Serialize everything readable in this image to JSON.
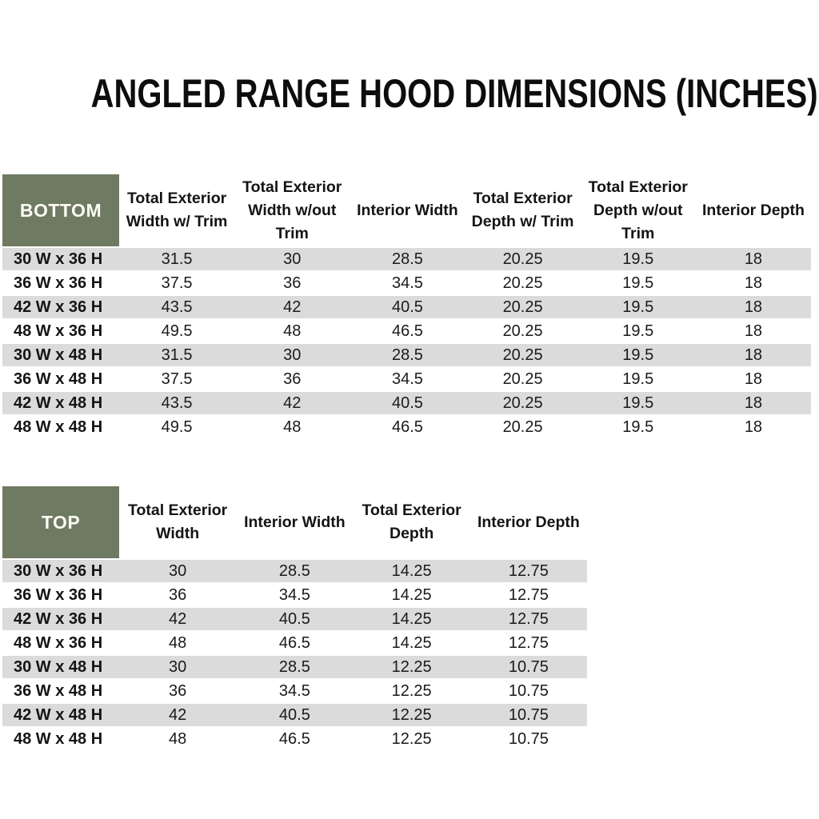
{
  "title": "ANGLED RANGE HOOD DIMENSIONS (INCHES)",
  "colors": {
    "header_green": "#6f7a62",
    "stripe_gray": "#dbdbdb",
    "header_text": "#fbfbf4",
    "body_text": "#1a1a1a",
    "background": "#ffffff"
  },
  "bottom_table": {
    "label": "BOTTOM",
    "columns": [
      "Total Exterior Width w/ Trim",
      "Total Exterior Width w/out Trim",
      "Interior Width",
      "Total Exterior Depth w/ Trim",
      "Total Exterior Depth w/out Trim",
      "Interior Depth"
    ],
    "rows": [
      {
        "size": "30 W x 36 H",
        "values": [
          "31.5",
          "30",
          "28.5",
          "20.25",
          "19.5",
          "18"
        ]
      },
      {
        "size": "36 W x 36 H",
        "values": [
          "37.5",
          "36",
          "34.5",
          "20.25",
          "19.5",
          "18"
        ]
      },
      {
        "size": "42 W x 36 H",
        "values": [
          "43.5",
          "42",
          "40.5",
          "20.25",
          "19.5",
          "18"
        ]
      },
      {
        "size": "48 W x 36 H",
        "values": [
          "49.5",
          "48",
          "46.5",
          "20.25",
          "19.5",
          "18"
        ]
      },
      {
        "size": "30 W x 48 H",
        "values": [
          "31.5",
          "30",
          "28.5",
          "20.25",
          "19.5",
          "18"
        ]
      },
      {
        "size": "36 W x 48 H",
        "values": [
          "37.5",
          "36",
          "34.5",
          "20.25",
          "19.5",
          "18"
        ]
      },
      {
        "size": "42 W x 48 H",
        "values": [
          "43.5",
          "42",
          "40.5",
          "20.25",
          "19.5",
          "18"
        ]
      },
      {
        "size": "48 W x 48 H",
        "values": [
          "49.5",
          "48",
          "46.5",
          "20.25",
          "19.5",
          "18"
        ]
      }
    ]
  },
  "top_table": {
    "label": "TOP",
    "columns": [
      "Total Exterior Width",
      "Interior Width",
      "Total Exterior Depth",
      "Interior Depth"
    ],
    "rows": [
      {
        "size": "30 W x 36 H",
        "values": [
          "30",
          "28.5",
          "14.25",
          "12.75"
        ]
      },
      {
        "size": "36 W x 36 H",
        "values": [
          "36",
          "34.5",
          "14.25",
          "12.75"
        ]
      },
      {
        "size": "42 W x 36 H",
        "values": [
          "42",
          "40.5",
          "14.25",
          "12.75"
        ]
      },
      {
        "size": "48 W x 36 H",
        "values": [
          "48",
          "46.5",
          "14.25",
          "12.75"
        ]
      },
      {
        "size": "30 W x 48 H",
        "values": [
          "30",
          "28.5",
          "12.25",
          "10.75"
        ]
      },
      {
        "size": "36 W x 48 H",
        "values": [
          "36",
          "34.5",
          "12.25",
          "10.75"
        ]
      },
      {
        "size": "42 W x 48 H",
        "values": [
          "42",
          "40.5",
          "12.25",
          "10.75"
        ]
      },
      {
        "size": "48 W x 48 H",
        "values": [
          "48",
          "46.5",
          "12.25",
          "10.75"
        ]
      }
    ]
  }
}
